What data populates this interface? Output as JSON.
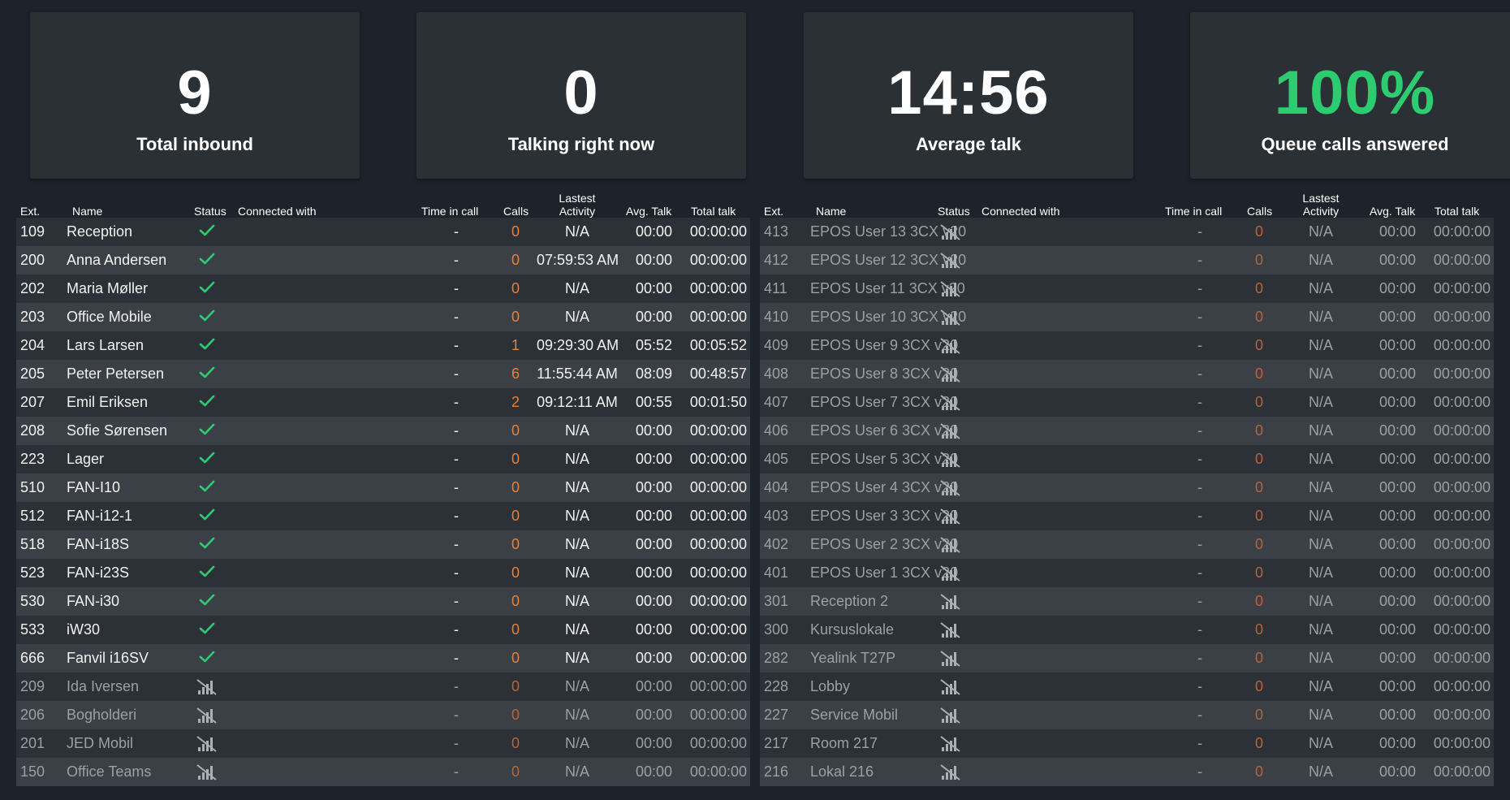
{
  "kpis": [
    {
      "value": "9",
      "label": "Total inbound",
      "color": "#ffffff"
    },
    {
      "value": "0",
      "label": "Talking right now",
      "color": "#ffffff"
    },
    {
      "value": "14:56",
      "label": "Average talk",
      "color": "#ffffff"
    },
    {
      "value": "100%",
      "label": "Queue calls answered",
      "color": "#2ecc71"
    }
  ],
  "columns": {
    "ext": "Ext.",
    "name": "Name",
    "status": "Status",
    "connected": "Connected with",
    "time_in_call": "Time in call",
    "calls": "Calls",
    "last_activity": "Lastest Activity",
    "avg_talk": "Avg. Talk",
    "total_talk": "Total talk"
  },
  "status_icons": {
    "online": "checkmark-icon",
    "offline": "no-signal-icon"
  },
  "colors": {
    "online": "#2ecc71",
    "calls": "#e8803a",
    "background": "#1d232a"
  },
  "left_rows": [
    {
      "ext": "109",
      "name": "Reception",
      "status": "online",
      "connected": "",
      "time": "-",
      "calls": "0",
      "last": "N/A",
      "avg": "00:00",
      "total": "00:00:00"
    },
    {
      "ext": "200",
      "name": "Anna Andersen",
      "status": "online",
      "connected": "",
      "time": "-",
      "calls": "0",
      "last": "07:59:53 AM",
      "avg": "00:00",
      "total": "00:00:00"
    },
    {
      "ext": "202",
      "name": "Maria Møller",
      "status": "online",
      "connected": "",
      "time": "-",
      "calls": "0",
      "last": "N/A",
      "avg": "00:00",
      "total": "00:00:00"
    },
    {
      "ext": "203",
      "name": "Office Mobile",
      "status": "online",
      "connected": "",
      "time": "-",
      "calls": "0",
      "last": "N/A",
      "avg": "00:00",
      "total": "00:00:00"
    },
    {
      "ext": "204",
      "name": "Lars Larsen",
      "status": "online",
      "connected": "",
      "time": "-",
      "calls": "1",
      "last": "09:29:30 AM",
      "avg": "05:52",
      "total": "00:05:52"
    },
    {
      "ext": "205",
      "name": "Peter Petersen",
      "status": "online",
      "connected": "",
      "time": "-",
      "calls": "6",
      "last": "11:55:44 AM",
      "avg": "08:09",
      "total": "00:48:57"
    },
    {
      "ext": "207",
      "name": "Emil Eriksen",
      "status": "online",
      "connected": "",
      "time": "-",
      "calls": "2",
      "last": "09:12:11 AM",
      "avg": "00:55",
      "total": "00:01:50"
    },
    {
      "ext": "208",
      "name": "Sofie Sørensen",
      "status": "online",
      "connected": "",
      "time": "-",
      "calls": "0",
      "last": "N/A",
      "avg": "00:00",
      "total": "00:00:00"
    },
    {
      "ext": "223",
      "name": "Lager",
      "status": "online",
      "connected": "",
      "time": "-",
      "calls": "0",
      "last": "N/A",
      "avg": "00:00",
      "total": "00:00:00"
    },
    {
      "ext": "510",
      "name": "FAN-I10",
      "status": "online",
      "connected": "",
      "time": "-",
      "calls": "0",
      "last": "N/A",
      "avg": "00:00",
      "total": "00:00:00"
    },
    {
      "ext": "512",
      "name": "FAN-i12-1",
      "status": "online",
      "connected": "",
      "time": "-",
      "calls": "0",
      "last": "N/A",
      "avg": "00:00",
      "total": "00:00:00"
    },
    {
      "ext": "518",
      "name": "FAN-i18S",
      "status": "online",
      "connected": "",
      "time": "-",
      "calls": "0",
      "last": "N/A",
      "avg": "00:00",
      "total": "00:00:00"
    },
    {
      "ext": "523",
      "name": "FAN-i23S",
      "status": "online",
      "connected": "",
      "time": "-",
      "calls": "0",
      "last": "N/A",
      "avg": "00:00",
      "total": "00:00:00"
    },
    {
      "ext": "530",
      "name": "FAN-i30",
      "status": "online",
      "connected": "",
      "time": "-",
      "calls": "0",
      "last": "N/A",
      "avg": "00:00",
      "total": "00:00:00"
    },
    {
      "ext": "533",
      "name": "iW30",
      "status": "online",
      "connected": "",
      "time": "-",
      "calls": "0",
      "last": "N/A",
      "avg": "00:00",
      "total": "00:00:00"
    },
    {
      "ext": "666",
      "name": "Fanvil i16SV",
      "status": "online",
      "connected": "",
      "time": "-",
      "calls": "0",
      "last": "N/A",
      "avg": "00:00",
      "total": "00:00:00"
    },
    {
      "ext": "209",
      "name": "Ida Iversen",
      "status": "offline",
      "connected": "",
      "time": "-",
      "calls": "0",
      "last": "N/A",
      "avg": "00:00",
      "total": "00:00:00"
    },
    {
      "ext": "206",
      "name": "Bogholderi",
      "status": "offline",
      "connected": "",
      "time": "-",
      "calls": "0",
      "last": "N/A",
      "avg": "00:00",
      "total": "00:00:00"
    },
    {
      "ext": "201",
      "name": "JED Mobil",
      "status": "offline",
      "connected": "",
      "time": "-",
      "calls": "0",
      "last": "N/A",
      "avg": "00:00",
      "total": "00:00:00"
    },
    {
      "ext": "150",
      "name": "Office Teams",
      "status": "offline",
      "connected": "",
      "time": "-",
      "calls": "0",
      "last": "N/A",
      "avg": "00:00",
      "total": "00:00:00"
    }
  ],
  "right_rows": [
    {
      "ext": "413",
      "name": "EPOS User 13 3CX v20",
      "status": "offline",
      "connected": "",
      "time": "-",
      "calls": "0",
      "last": "N/A",
      "avg": "00:00",
      "total": "00:00:00"
    },
    {
      "ext": "412",
      "name": "EPOS User 12 3CX v20",
      "status": "offline",
      "connected": "",
      "time": "-",
      "calls": "0",
      "last": "N/A",
      "avg": "00:00",
      "total": "00:00:00"
    },
    {
      "ext": "411",
      "name": "EPOS User 11 3CX v20",
      "status": "offline",
      "connected": "",
      "time": "-",
      "calls": "0",
      "last": "N/A",
      "avg": "00:00",
      "total": "00:00:00"
    },
    {
      "ext": "410",
      "name": "EPOS User 10 3CX v20",
      "status": "offline",
      "connected": "",
      "time": "-",
      "calls": "0",
      "last": "N/A",
      "avg": "00:00",
      "total": "00:00:00"
    },
    {
      "ext": "409",
      "name": "EPOS User 9 3CX v20",
      "status": "offline",
      "connected": "",
      "time": "-",
      "calls": "0",
      "last": "N/A",
      "avg": "00:00",
      "total": "00:00:00"
    },
    {
      "ext": "408",
      "name": "EPOS User 8 3CX v20",
      "status": "offline",
      "connected": "",
      "time": "-",
      "calls": "0",
      "last": "N/A",
      "avg": "00:00",
      "total": "00:00:00"
    },
    {
      "ext": "407",
      "name": "EPOS User 7 3CX v20",
      "status": "offline",
      "connected": "",
      "time": "-",
      "calls": "0",
      "last": "N/A",
      "avg": "00:00",
      "total": "00:00:00"
    },
    {
      "ext": "406",
      "name": "EPOS User 6 3CX v20",
      "status": "offline",
      "connected": "",
      "time": "-",
      "calls": "0",
      "last": "N/A",
      "avg": "00:00",
      "total": "00:00:00"
    },
    {
      "ext": "405",
      "name": "EPOS User 5 3CX v20",
      "status": "offline",
      "connected": "",
      "time": "-",
      "calls": "0",
      "last": "N/A",
      "avg": "00:00",
      "total": "00:00:00"
    },
    {
      "ext": "404",
      "name": "EPOS User 4 3CX v20",
      "status": "offline",
      "connected": "",
      "time": "-",
      "calls": "0",
      "last": "N/A",
      "avg": "00:00",
      "total": "00:00:00"
    },
    {
      "ext": "403",
      "name": "EPOS User 3 3CX v20",
      "status": "offline",
      "connected": "",
      "time": "-",
      "calls": "0",
      "last": "N/A",
      "avg": "00:00",
      "total": "00:00:00"
    },
    {
      "ext": "402",
      "name": "EPOS User 2 3CX v20",
      "status": "offline",
      "connected": "",
      "time": "-",
      "calls": "0",
      "last": "N/A",
      "avg": "00:00",
      "total": "00:00:00"
    },
    {
      "ext": "401",
      "name": "EPOS User 1 3CX v20",
      "status": "offline",
      "connected": "",
      "time": "-",
      "calls": "0",
      "last": "N/A",
      "avg": "00:00",
      "total": "00:00:00"
    },
    {
      "ext": "301",
      "name": "Reception 2",
      "status": "offline",
      "connected": "",
      "time": "-",
      "calls": "0",
      "last": "N/A",
      "avg": "00:00",
      "total": "00:00:00"
    },
    {
      "ext": "300",
      "name": "Kursuslokale",
      "status": "offline",
      "connected": "",
      "time": "-",
      "calls": "0",
      "last": "N/A",
      "avg": "00:00",
      "total": "00:00:00"
    },
    {
      "ext": "282",
      "name": "Yealink T27P",
      "status": "offline",
      "connected": "",
      "time": "-",
      "calls": "0",
      "last": "N/A",
      "avg": "00:00",
      "total": "00:00:00"
    },
    {
      "ext": "228",
      "name": "Lobby",
      "status": "offline",
      "connected": "",
      "time": "-",
      "calls": "0",
      "last": "N/A",
      "avg": "00:00",
      "total": "00:00:00"
    },
    {
      "ext": "227",
      "name": "Service Mobil",
      "status": "offline",
      "connected": "",
      "time": "-",
      "calls": "0",
      "last": "N/A",
      "avg": "00:00",
      "total": "00:00:00"
    },
    {
      "ext": "217",
      "name": "Room 217",
      "status": "offline",
      "connected": "",
      "time": "-",
      "calls": "0",
      "last": "N/A",
      "avg": "00:00",
      "total": "00:00:00"
    },
    {
      "ext": "216",
      "name": "Lokal 216",
      "status": "offline",
      "connected": "",
      "time": "-",
      "calls": "0",
      "last": "N/A",
      "avg": "00:00",
      "total": "00:00:00"
    }
  ]
}
